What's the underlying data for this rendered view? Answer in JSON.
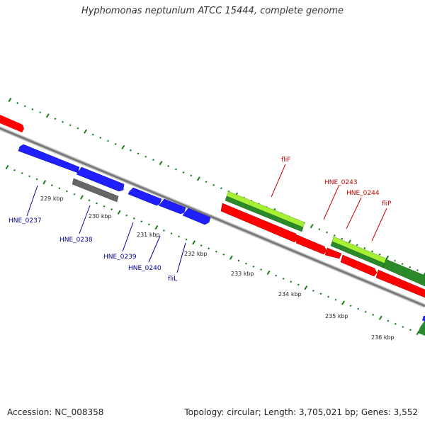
{
  "title": "Hyphomonas neptunium ATCC 15444, complete genome",
  "footer": {
    "accession": "Accession: NC_008358",
    "topology": "Topology: circular; Length: 3,705,021 bp; Genes: 3,552"
  },
  "colors": {
    "backbone": "#888888",
    "tick": "#1a7a1a",
    "forward_label": "#cc0000",
    "reverse_label": "#000099",
    "red_gene": "#ff0000",
    "blue_gene": "#0000ff",
    "gray_gene": "#666666",
    "green_gene": "#2a8a2a",
    "lightgreen_gene": "#99ee33"
  },
  "kbp_ticks": [
    {
      "label": "229 kbp",
      "pos": 229
    },
    {
      "label": "230 kbp",
      "pos": 230
    },
    {
      "label": "231 kbp",
      "pos": 231
    },
    {
      "label": "232 kbp",
      "pos": 232
    },
    {
      "label": "233 kbp",
      "pos": 233
    },
    {
      "label": "234 kbp",
      "pos": 234
    },
    {
      "label": "235 kbp",
      "pos": 235
    },
    {
      "label": "236 kbp",
      "pos": 236
    }
  ],
  "labels_reverse": [
    {
      "name": "HNE_0237"
    },
    {
      "name": "HNE_0238"
    },
    {
      "name": "HNE_0239"
    },
    {
      "name": "HNE_0240"
    },
    {
      "name": "fliL"
    }
  ],
  "labels_forward": [
    {
      "name": "fliF"
    },
    {
      "name": "HNE_0243"
    },
    {
      "name": "HNE_0244"
    },
    {
      "name": "fliP"
    }
  ]
}
